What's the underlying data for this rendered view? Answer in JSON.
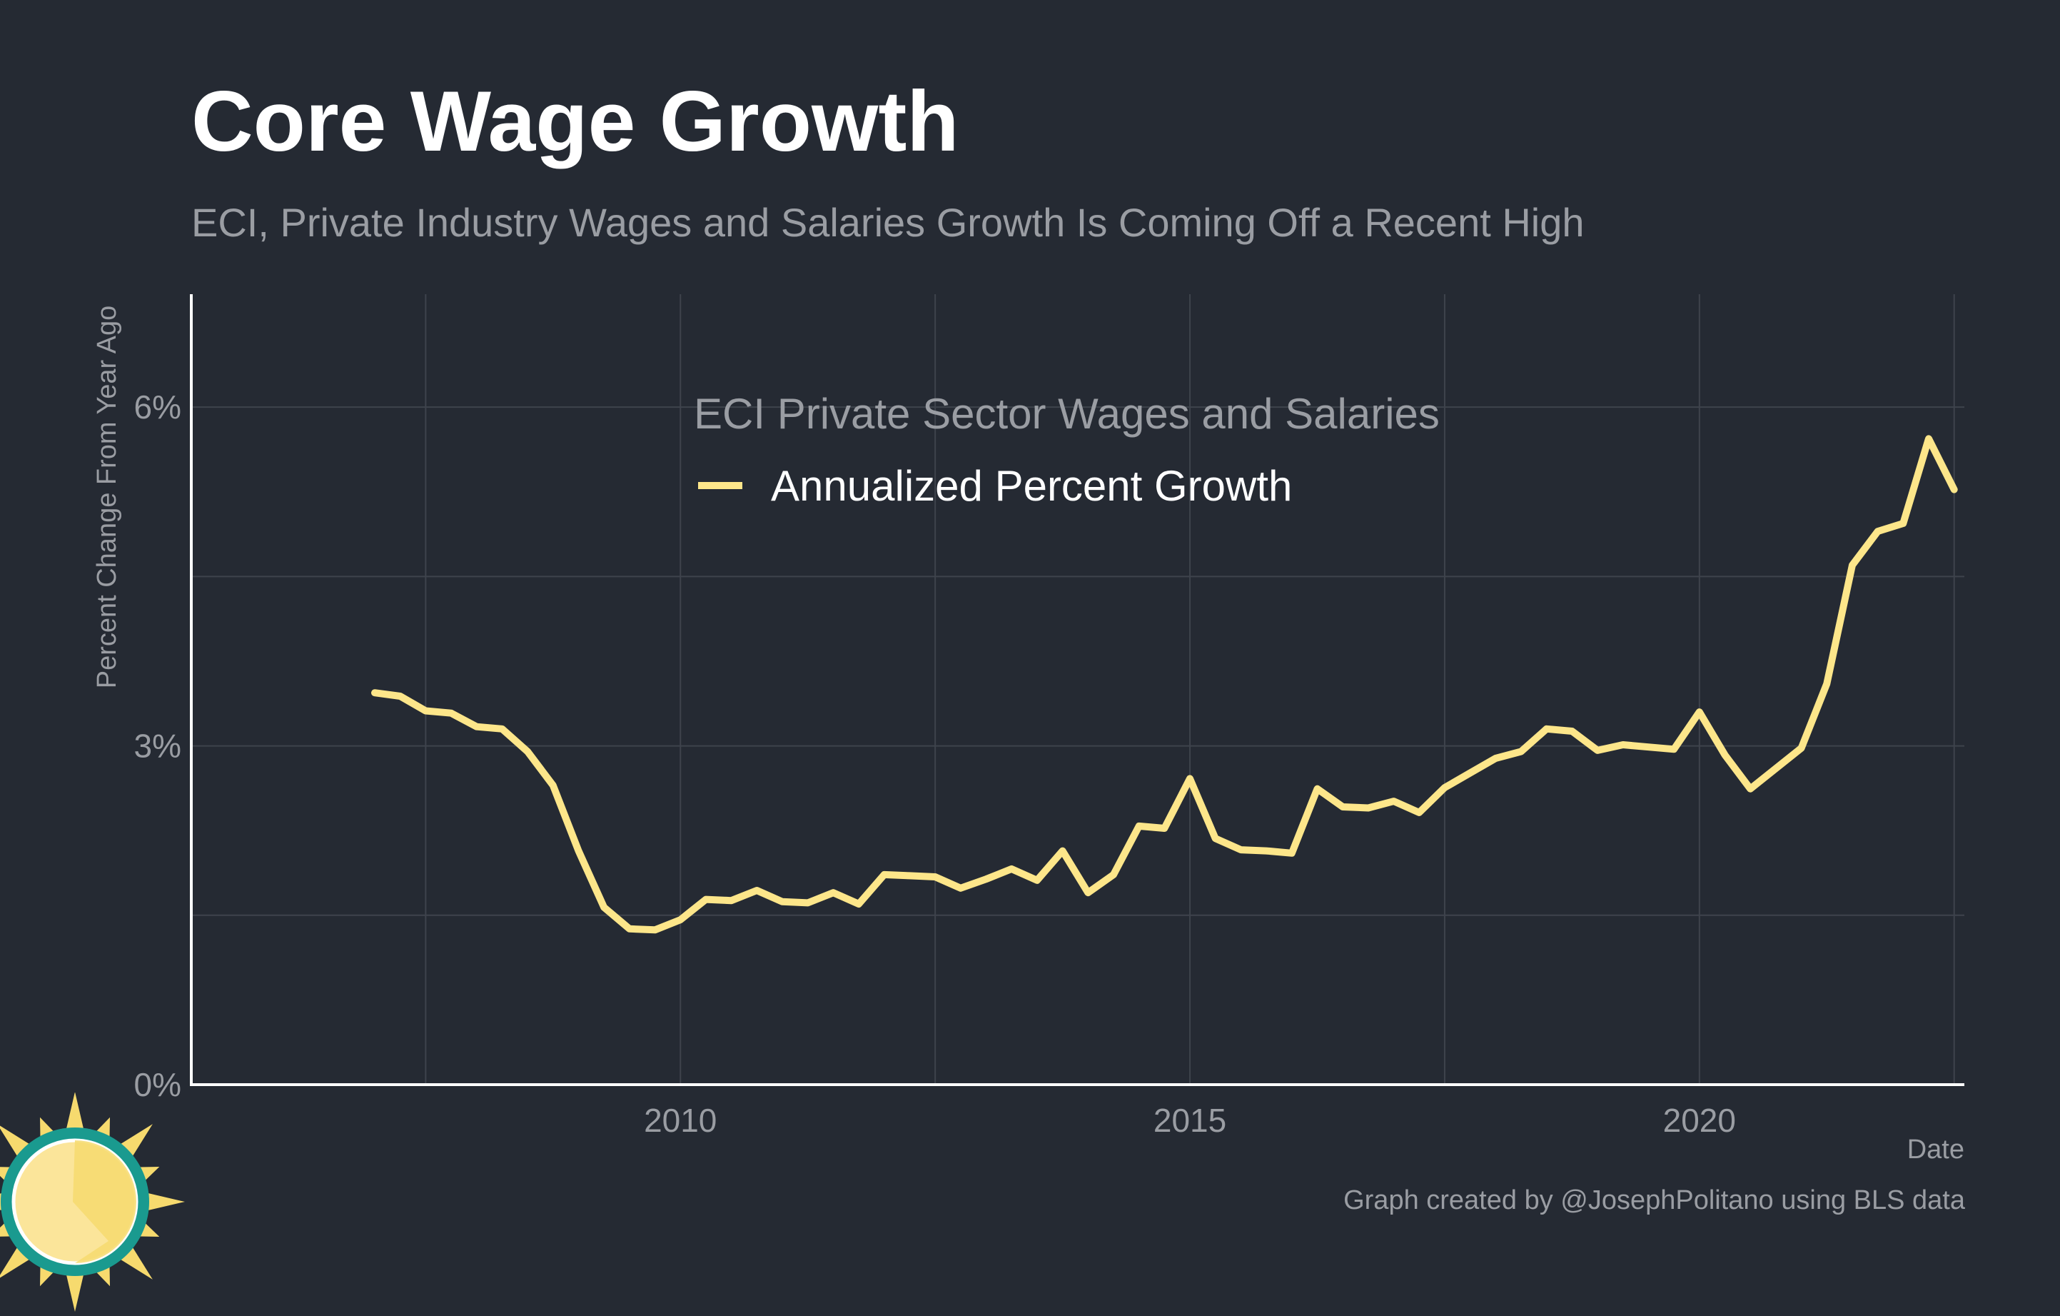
{
  "header": {
    "title": "Core Wage Growth",
    "subtitle": "ECI, Private Industry Wages and Salaries Growth Is Coming Off a Recent High"
  },
  "footer": {
    "caption": "Graph created by @JosephPolitano using BLS data"
  },
  "colors": {
    "background": "#252a33",
    "line": "#fde68a",
    "grid": "#3e434c",
    "axis": "#ffffff",
    "muted_text": "#9a9da3"
  },
  "logo": {
    "icon": "sun-icon"
  },
  "chart_data": {
    "type": "line",
    "xlabel": "Date",
    "ylabel": "Percent Change From Year Ago",
    "xlim": [
      2005.2,
      2022.6
    ],
    "ylim": [
      0,
      7
    ],
    "x_ticks": [
      {
        "value": 2010,
        "label": "2010"
      },
      {
        "value": 2015,
        "label": "2015"
      },
      {
        "value": 2020,
        "label": "2020"
      }
    ],
    "x_minor_ticks": [
      2007.5,
      2012.5,
      2017.5,
      2022.5
    ],
    "y_ticks": [
      {
        "value": 0,
        "label": "0%"
      },
      {
        "value": 3,
        "label": "3%"
      },
      {
        "value": 6,
        "label": "6%"
      }
    ],
    "y_minor_ticks": [
      1.5,
      4.5
    ],
    "grid": true,
    "legend": {
      "title": "ECI Private Sector Wages and Salaries",
      "placement": "top-center",
      "entries": [
        "Annualized Percent Growth"
      ]
    },
    "series": [
      {
        "name": "Annualized Percent Growth",
        "x": [
          2007.0,
          2007.25,
          2007.5,
          2007.75,
          2008.0,
          2008.25,
          2008.5,
          2008.75,
          2009.0,
          2009.25,
          2009.5,
          2009.75,
          2010.0,
          2010.25,
          2010.5,
          2010.75,
          2011.0,
          2011.25,
          2011.5,
          2011.75,
          2012.0,
          2012.25,
          2012.5,
          2012.75,
          2013.0,
          2013.25,
          2013.5,
          2013.75,
          2014.0,
          2014.25,
          2014.5,
          2014.75,
          2015.0,
          2015.25,
          2015.5,
          2015.75,
          2016.0,
          2016.25,
          2016.5,
          2016.75,
          2017.0,
          2017.25,
          2017.5,
          2017.75,
          2018.0,
          2018.25,
          2018.5,
          2018.75,
          2019.0,
          2019.25,
          2019.5,
          2019.75,
          2020.0,
          2020.25,
          2020.5,
          2020.75,
          2021.0,
          2021.25,
          2021.5,
          2021.75,
          2022.0,
          2022.25,
          2022.5
        ],
        "values": [
          3.47,
          3.44,
          3.31,
          3.29,
          3.17,
          3.15,
          2.95,
          2.65,
          2.07,
          1.57,
          1.38,
          1.37,
          1.46,
          1.64,
          1.63,
          1.72,
          1.62,
          1.61,
          1.7,
          1.6,
          1.86,
          1.85,
          1.84,
          1.74,
          1.82,
          1.91,
          1.81,
          2.07,
          1.7,
          1.86,
          2.29,
          2.27,
          2.71,
          2.18,
          2.08,
          2.07,
          2.05,
          2.62,
          2.46,
          2.45,
          2.51,
          2.41,
          2.63,
          2.76,
          2.89,
          2.95,
          3.15,
          3.13,
          2.96,
          3.01,
          2.99,
          2.97,
          3.3,
          2.92,
          2.62,
          2.8,
          2.98,
          3.55,
          4.6,
          4.9,
          4.97,
          5.72,
          5.27
        ]
      }
    ]
  }
}
